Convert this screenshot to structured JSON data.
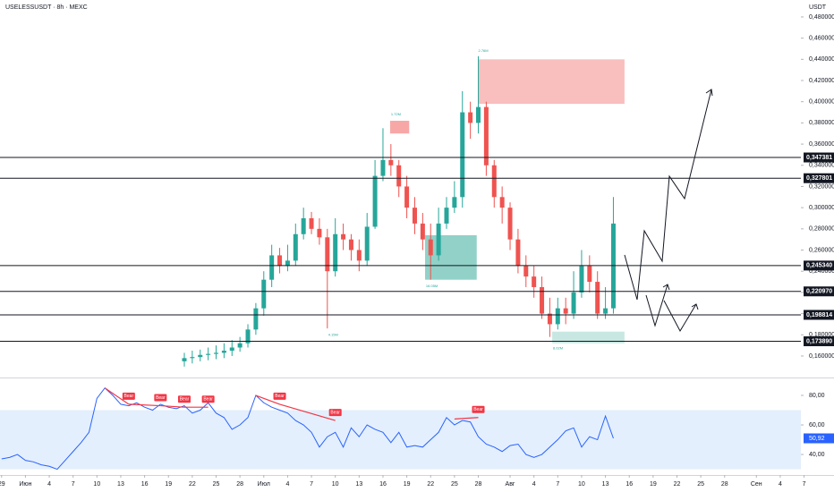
{
  "chart_data": {
    "type": "candlestick",
    "title": "USELESSUSDT · 8h · MEXC",
    "unit": "USDT",
    "x": [
      23,
      24,
      25,
      26,
      27,
      28,
      29,
      30,
      31,
      32,
      33,
      34,
      35,
      36,
      37,
      38,
      39,
      40,
      41,
      42,
      43,
      44,
      45,
      46,
      47,
      48,
      49,
      50,
      51,
      52,
      53,
      54,
      55,
      56,
      57,
      58,
      59,
      60,
      61,
      62,
      63,
      64,
      65,
      66,
      67,
      68,
      69,
      70,
      71,
      72,
      73,
      74,
      75,
      76,
      77
    ],
    "open": [
      0.155,
      0.158,
      0.159,
      0.161,
      0.162,
      0.163,
      0.165,
      0.168,
      0.172,
      0.185,
      0.205,
      0.232,
      0.255,
      0.245,
      0.25,
      0.275,
      0.29,
      0.28,
      0.272,
      0.24,
      0.275,
      0.27,
      0.26,
      0.25,
      0.282,
      0.33,
      0.345,
      0.34,
      0.32,
      0.3,
      0.285,
      0.27,
      0.255,
      0.285,
      0.3,
      0.31,
      0.39,
      0.38,
      0.395,
      0.34,
      0.31,
      0.3,
      0.27,
      0.245,
      0.235,
      0.225,
      0.2,
      0.19,
      0.205,
      0.2,
      0.22,
      0.245,
      0.23,
      0.2,
      0.205
    ],
    "high": [
      0.163,
      0.165,
      0.166,
      0.168,
      0.17,
      0.172,
      0.175,
      0.178,
      0.19,
      0.21,
      0.24,
      0.265,
      0.262,
      0.265,
      0.285,
      0.3,
      0.296,
      0.29,
      0.28,
      0.29,
      0.285,
      0.275,
      0.27,
      0.295,
      0.345,
      0.375,
      0.36,
      0.345,
      0.33,
      0.31,
      0.295,
      0.285,
      0.3,
      0.31,
      0.325,
      0.41,
      0.4,
      0.443,
      0.4,
      0.345,
      0.32,
      0.305,
      0.28,
      0.255,
      0.245,
      0.235,
      0.215,
      0.215,
      0.215,
      0.24,
      0.26,
      0.255,
      0.24,
      0.225,
      0.31
    ],
    "low": [
      0.15,
      0.153,
      0.155,
      0.156,
      0.157,
      0.158,
      0.16,
      0.164,
      0.168,
      0.18,
      0.198,
      0.225,
      0.238,
      0.24,
      0.245,
      0.27,
      0.275,
      0.265,
      0.186,
      0.235,
      0.26,
      0.25,
      0.24,
      0.245,
      0.28,
      0.325,
      0.33,
      0.31,
      0.29,
      0.275,
      0.26,
      0.232,
      0.25,
      0.28,
      0.295,
      0.3,
      0.365,
      0.37,
      0.33,
      0.3,
      0.285,
      0.26,
      0.238,
      0.225,
      0.215,
      0.195,
      0.178,
      0.185,
      0.19,
      0.195,
      0.215,
      0.22,
      0.195,
      0.195,
      0.2
    ],
    "close": [
      0.158,
      0.159,
      0.161,
      0.162,
      0.163,
      0.165,
      0.168,
      0.172,
      0.185,
      0.205,
      0.232,
      0.255,
      0.245,
      0.25,
      0.275,
      0.29,
      0.28,
      0.272,
      0.24,
      0.275,
      0.27,
      0.26,
      0.25,
      0.282,
      0.33,
      0.345,
      0.34,
      0.32,
      0.3,
      0.285,
      0.27,
      0.255,
      0.285,
      0.3,
      0.31,
      0.39,
      0.38,
      0.395,
      0.34,
      0.31,
      0.3,
      0.27,
      0.245,
      0.235,
      0.225,
      0.2,
      0.19,
      0.205,
      0.2,
      0.22,
      0.245,
      0.23,
      0.2,
      0.205,
      0.285
    ],
    "up_color": "#26a69a",
    "down_color": "#ef5350",
    "xlim": [
      -0.2,
      100.6
    ],
    "xticks": [
      {
        "value": 0,
        "label": "29"
      },
      {
        "value": 3,
        "label": "Июн"
      },
      {
        "value": 6,
        "label": "4"
      },
      {
        "value": 9,
        "label": "7"
      },
      {
        "value": 12,
        "label": "10"
      },
      {
        "value": 15,
        "label": "13"
      },
      {
        "value": 18,
        "label": "16"
      },
      {
        "value": 21,
        "label": "19"
      },
      {
        "value": 24,
        "label": "22"
      },
      {
        "value": 27,
        "label": "25"
      },
      {
        "value": 30,
        "label": "28"
      },
      {
        "value": 33,
        "label": "Июл"
      },
      {
        "value": 36,
        "label": "4"
      },
      {
        "value": 39,
        "label": "7"
      },
      {
        "value": 42,
        "label": "10"
      },
      {
        "value": 45,
        "label": "13"
      },
      {
        "value": 48,
        "label": "16"
      },
      {
        "value": 51,
        "label": "19"
      },
      {
        "value": 54,
        "label": "22"
      },
      {
        "value": 57,
        "label": "25"
      },
      {
        "value": 60,
        "label": "28"
      },
      {
        "value": 64,
        "label": "Авг"
      },
      {
        "value": 67,
        "label": "4"
      },
      {
        "value": 70,
        "label": "7"
      },
      {
        "value": 73,
        "label": "10"
      },
      {
        "value": 76,
        "label": "13"
      },
      {
        "value": 79,
        "label": "16"
      },
      {
        "value": 82,
        "label": "19"
      },
      {
        "value": 85,
        "label": "22"
      },
      {
        "value": 88,
        "label": "25"
      },
      {
        "value": 91,
        "label": "28"
      },
      {
        "value": 95,
        "label": "Сен"
      },
      {
        "value": 98,
        "label": "4"
      },
      {
        "value": 101,
        "label": "7"
      }
    ],
    "ylim": [
      0.1397,
      0.496
    ],
    "yticks": [
      {
        "value": 0.16,
        "label": "0,160000"
      },
      {
        "value": 0.18,
        "label": "0,180000"
      },
      {
        "value": 0.2,
        "label": "0,200000"
      },
      {
        "value": 0.22,
        "label": "0,220000"
      },
      {
        "value": 0.24,
        "label": "0,240000"
      },
      {
        "value": 0.26,
        "label": "0,260000"
      },
      {
        "value": 0.28,
        "label": "0,280000"
      },
      {
        "value": 0.3,
        "label": "0,300000"
      },
      {
        "value": 0.32,
        "label": "0,320000"
      },
      {
        "value": 0.34,
        "label": "0,340000"
      },
      {
        "value": 0.36,
        "label": "0,360000"
      },
      {
        "value": 0.38,
        "label": "0,380000"
      },
      {
        "value": 0.4,
        "label": "0,400000"
      },
      {
        "value": 0.42,
        "label": "0,420000"
      },
      {
        "value": 0.44,
        "label": "0,440000"
      },
      {
        "value": 0.46,
        "label": "0,460000"
      },
      {
        "value": 0.48,
        "label": "0,480000"
      }
    ],
    "levels": [
      {
        "value": 0.347381,
        "label": "0,347381"
      },
      {
        "value": 0.327801,
        "label": "0,327801"
      },
      {
        "value": 0.24534,
        "label": "0,245340"
      },
      {
        "value": 0.22097,
        "label": "0,220970"
      },
      {
        "value": 0.198814,
        "label": "0,198814"
      },
      {
        "value": 0.17389,
        "label": "0,173890"
      }
    ],
    "zones": [
      {
        "x": [
          60,
          78.4
        ],
        "y": [
          0.44,
          0.398
        ],
        "color": "#f7a8a8"
      },
      {
        "x": [
          48.9,
          51.3
        ],
        "y": [
          0.382,
          0.37
        ],
        "color": "#f58a8a"
      },
      {
        "x": [
          53.3,
          59.8
        ],
        "y": [
          0.274,
          0.232
        ],
        "color": "#6cc2b5"
      },
      {
        "x": [
          69.3,
          78.4
        ],
        "y": [
          0.183,
          0.172
        ],
        "color": "#b5dfd8"
      }
    ],
    "notes": [
      {
        "label": "2.76M",
        "x": 60,
        "y": 0.448
      },
      {
        "label": "1.72M",
        "x": 49,
        "y": 0.388
      },
      {
        "label": "16.05M",
        "x": 53.4,
        "y": 0.226
      },
      {
        "label": "4.15M",
        "x": 41.1,
        "y": 0.18
      },
      {
        "label": "8.02M",
        "x": 69.4,
        "y": 0.167
      }
    ],
    "rsi": {
      "color": "#2962ff",
      "band_color": "#e3effc",
      "x": [
        0,
        1,
        2,
        3,
        4,
        5,
        6,
        7,
        8,
        9,
        10,
        11,
        12,
        13,
        14,
        15,
        16,
        17,
        18,
        19,
        20,
        21,
        22,
        23,
        24,
        25,
        26,
        27,
        28,
        29,
        30,
        31,
        32,
        33,
        34,
        35,
        36,
        37,
        38,
        39,
        40,
        41,
        42,
        43,
        44,
        45,
        46,
        47,
        48,
        49,
        50,
        51,
        52,
        53,
        54,
        55,
        56,
        57,
        58,
        59,
        60,
        61,
        62,
        63,
        64,
        65,
        66,
        67,
        68,
        69,
        70,
        71,
        72,
        73,
        74,
        75,
        76,
        77
      ],
      "values": [
        37,
        38,
        40,
        36,
        35,
        33,
        32,
        30,
        36,
        42,
        48,
        55,
        78,
        85,
        80,
        74,
        73,
        75,
        72,
        70,
        74,
        72,
        71,
        73,
        68,
        70,
        75,
        68,
        65,
        57,
        60,
        65,
        80,
        75,
        72,
        70,
        68,
        63,
        60,
        55,
        45,
        52,
        55,
        45,
        58,
        52,
        60,
        57,
        55,
        48,
        55,
        45,
        46,
        45,
        50,
        55,
        65,
        60,
        63,
        62,
        52,
        47,
        45,
        42,
        46,
        47,
        40,
        38,
        40,
        45,
        50,
        56,
        58,
        45,
        52,
        50,
        66,
        50.92
      ],
      "ylim": [
        26.7,
        90.3
      ],
      "yticks": [
        {
          "value": 40,
          "label": "40,00"
        },
        {
          "value": 60,
          "label": "60,00"
        },
        {
          "value": 80,
          "label": "80,00"
        }
      ],
      "band": [
        30,
        70
      ],
      "current": {
        "value": 50.92,
        "label": "50,92"
      },
      "bears": [
        {
          "label": "Bear",
          "x": [
            13,
            16
          ],
          "y": [
            85,
            74
          ]
        },
        {
          "label": "Bear",
          "x": [
            16,
            20
          ],
          "y": [
            74,
            73
          ]
        },
        {
          "label": "Bear",
          "x": [
            20,
            23
          ],
          "y": [
            73,
            72
          ]
        },
        {
          "label": "Bear",
          "x": [
            23,
            26
          ],
          "y": [
            72,
            72
          ]
        },
        {
          "label": "Bear",
          "x": [
            32,
            35
          ],
          "y": [
            80,
            74
          ]
        },
        {
          "label": "Bear",
          "x": [
            35,
            42
          ],
          "y": [
            74,
            63
          ]
        },
        {
          "label": "Bear",
          "x": [
            57,
            60
          ],
          "y": [
            64,
            65
          ]
        }
      ]
    }
  }
}
